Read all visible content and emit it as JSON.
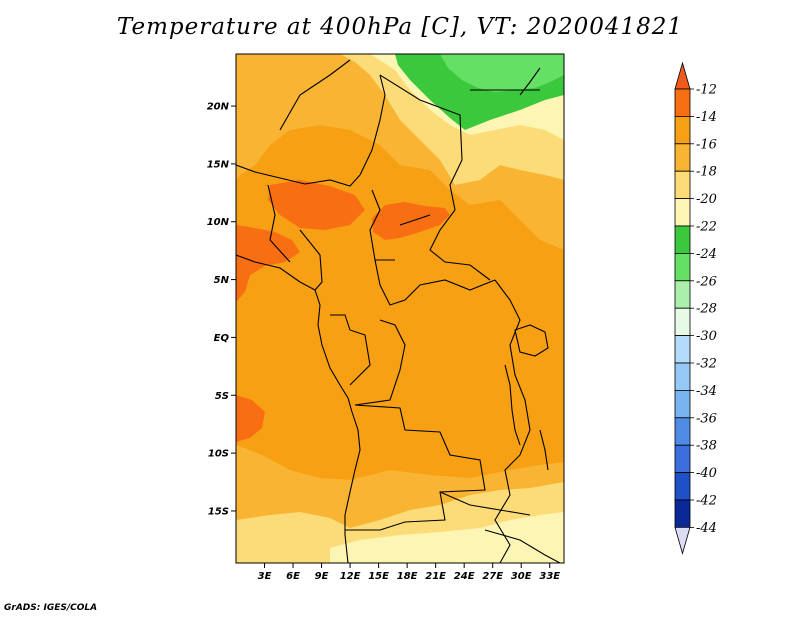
{
  "title": "Temperature at 400hPa [C], VT: 2020041821",
  "credit": "GrADS: IGES/COLA",
  "map": {
    "lon_range": [
      0,
      34.5
    ],
    "lat_range": [
      -19.5,
      24.5
    ],
    "lat_ticks": [
      {
        "value": 20,
        "label": "20N"
      },
      {
        "value": 15,
        "label": "15N"
      },
      {
        "value": 10,
        "label": "10N"
      },
      {
        "value": 5,
        "label": "5N"
      },
      {
        "value": 0,
        "label": "EQ"
      },
      {
        "value": -5,
        "label": "5S"
      },
      {
        "value": -10,
        "label": "10S"
      },
      {
        "value": -15,
        "label": "15S"
      }
    ],
    "lon_ticks": [
      {
        "value": 3,
        "label": "3E"
      },
      {
        "value": 6,
        "label": "6E"
      },
      {
        "value": 9,
        "label": "9E"
      },
      {
        "value": 12,
        "label": "12E"
      },
      {
        "value": 15,
        "label": "15E"
      },
      {
        "value": 18,
        "label": "18E"
      },
      {
        "value": 21,
        "label": "21E"
      },
      {
        "value": 24,
        "label": "24E"
      },
      {
        "value": 27,
        "label": "27E"
      },
      {
        "value": 30,
        "label": "30E"
      },
      {
        "value": 33,
        "label": "33E"
      }
    ]
  },
  "colorbar": {
    "labels": [
      "-12",
      "-14",
      "-16",
      "-18",
      "-20",
      "-22",
      "-24",
      "-26",
      "-28",
      "-30",
      "-32",
      "-34",
      "-36",
      "-38",
      "-40",
      "-42",
      "-44"
    ],
    "top_arrow_color": "#f05a1e",
    "bottom_arrow_color": "#dcdcf5",
    "bins": [
      "#f86e12",
      "#f8a014",
      "#f8b432",
      "#fcdc78",
      "#fcf5b4",
      "#3cc83c",
      "#64e164",
      "#aaf0aa",
      "#e6fae6",
      "#b4dcfa",
      "#96c8f5",
      "#78b4f0",
      "#508ce6",
      "#3c6edc",
      "#1e50c8",
      "#0a2896"
    ]
  },
  "colors": {
    "c_12": "#f86e12",
    "c_14": "#f8a014",
    "c_16": "#f8b432",
    "c_18": "#fcdc78",
    "c_20": "#fcf5b4",
    "c_22": "#3cc83c",
    "c_24": "#64e164"
  }
}
